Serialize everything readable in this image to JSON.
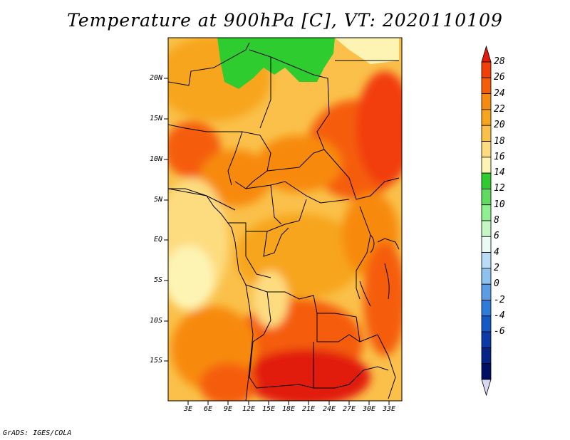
{
  "title": "Temperature at 900hPa [C], VT: 2020110109",
  "credit": "GrADS: IGES/COLA",
  "map": {
    "variable": "Temperature at 900hPa",
    "unit": "C",
    "valid_time": "2020110109",
    "lat_labels": [
      "20N",
      "15N",
      "10N",
      "5N",
      "EQ",
      "5S",
      "10S",
      "15S"
    ],
    "lon_labels": [
      "3E",
      "6E",
      "9E",
      "12E",
      "15E",
      "18E",
      "21E",
      "24E",
      "27E",
      "30E",
      "33E"
    ]
  },
  "colorbar": {
    "labels": [
      "28",
      "26",
      "24",
      "22",
      "20",
      "18",
      "16",
      "14",
      "12",
      "10",
      "8",
      "6",
      "4",
      "2",
      "0",
      "-2",
      "-4",
      "-6"
    ],
    "colors": [
      "#e11b0c",
      "#f23e07",
      "#f55d0a",
      "#f78a10",
      "#f7a51f",
      "#fac04a",
      "#fddc80",
      "#fdf4b4",
      "#2ecc2e",
      "#5fdb5f",
      "#8ff08f",
      "#c5f7c5",
      "#eafaf5",
      "#b9dcf7",
      "#8cc1f0",
      "#5a9de6",
      "#2f7bdc",
      "#1559c9",
      "#0a3aa8",
      "#062488",
      "#000e66",
      "#d8d8f0"
    ]
  }
}
